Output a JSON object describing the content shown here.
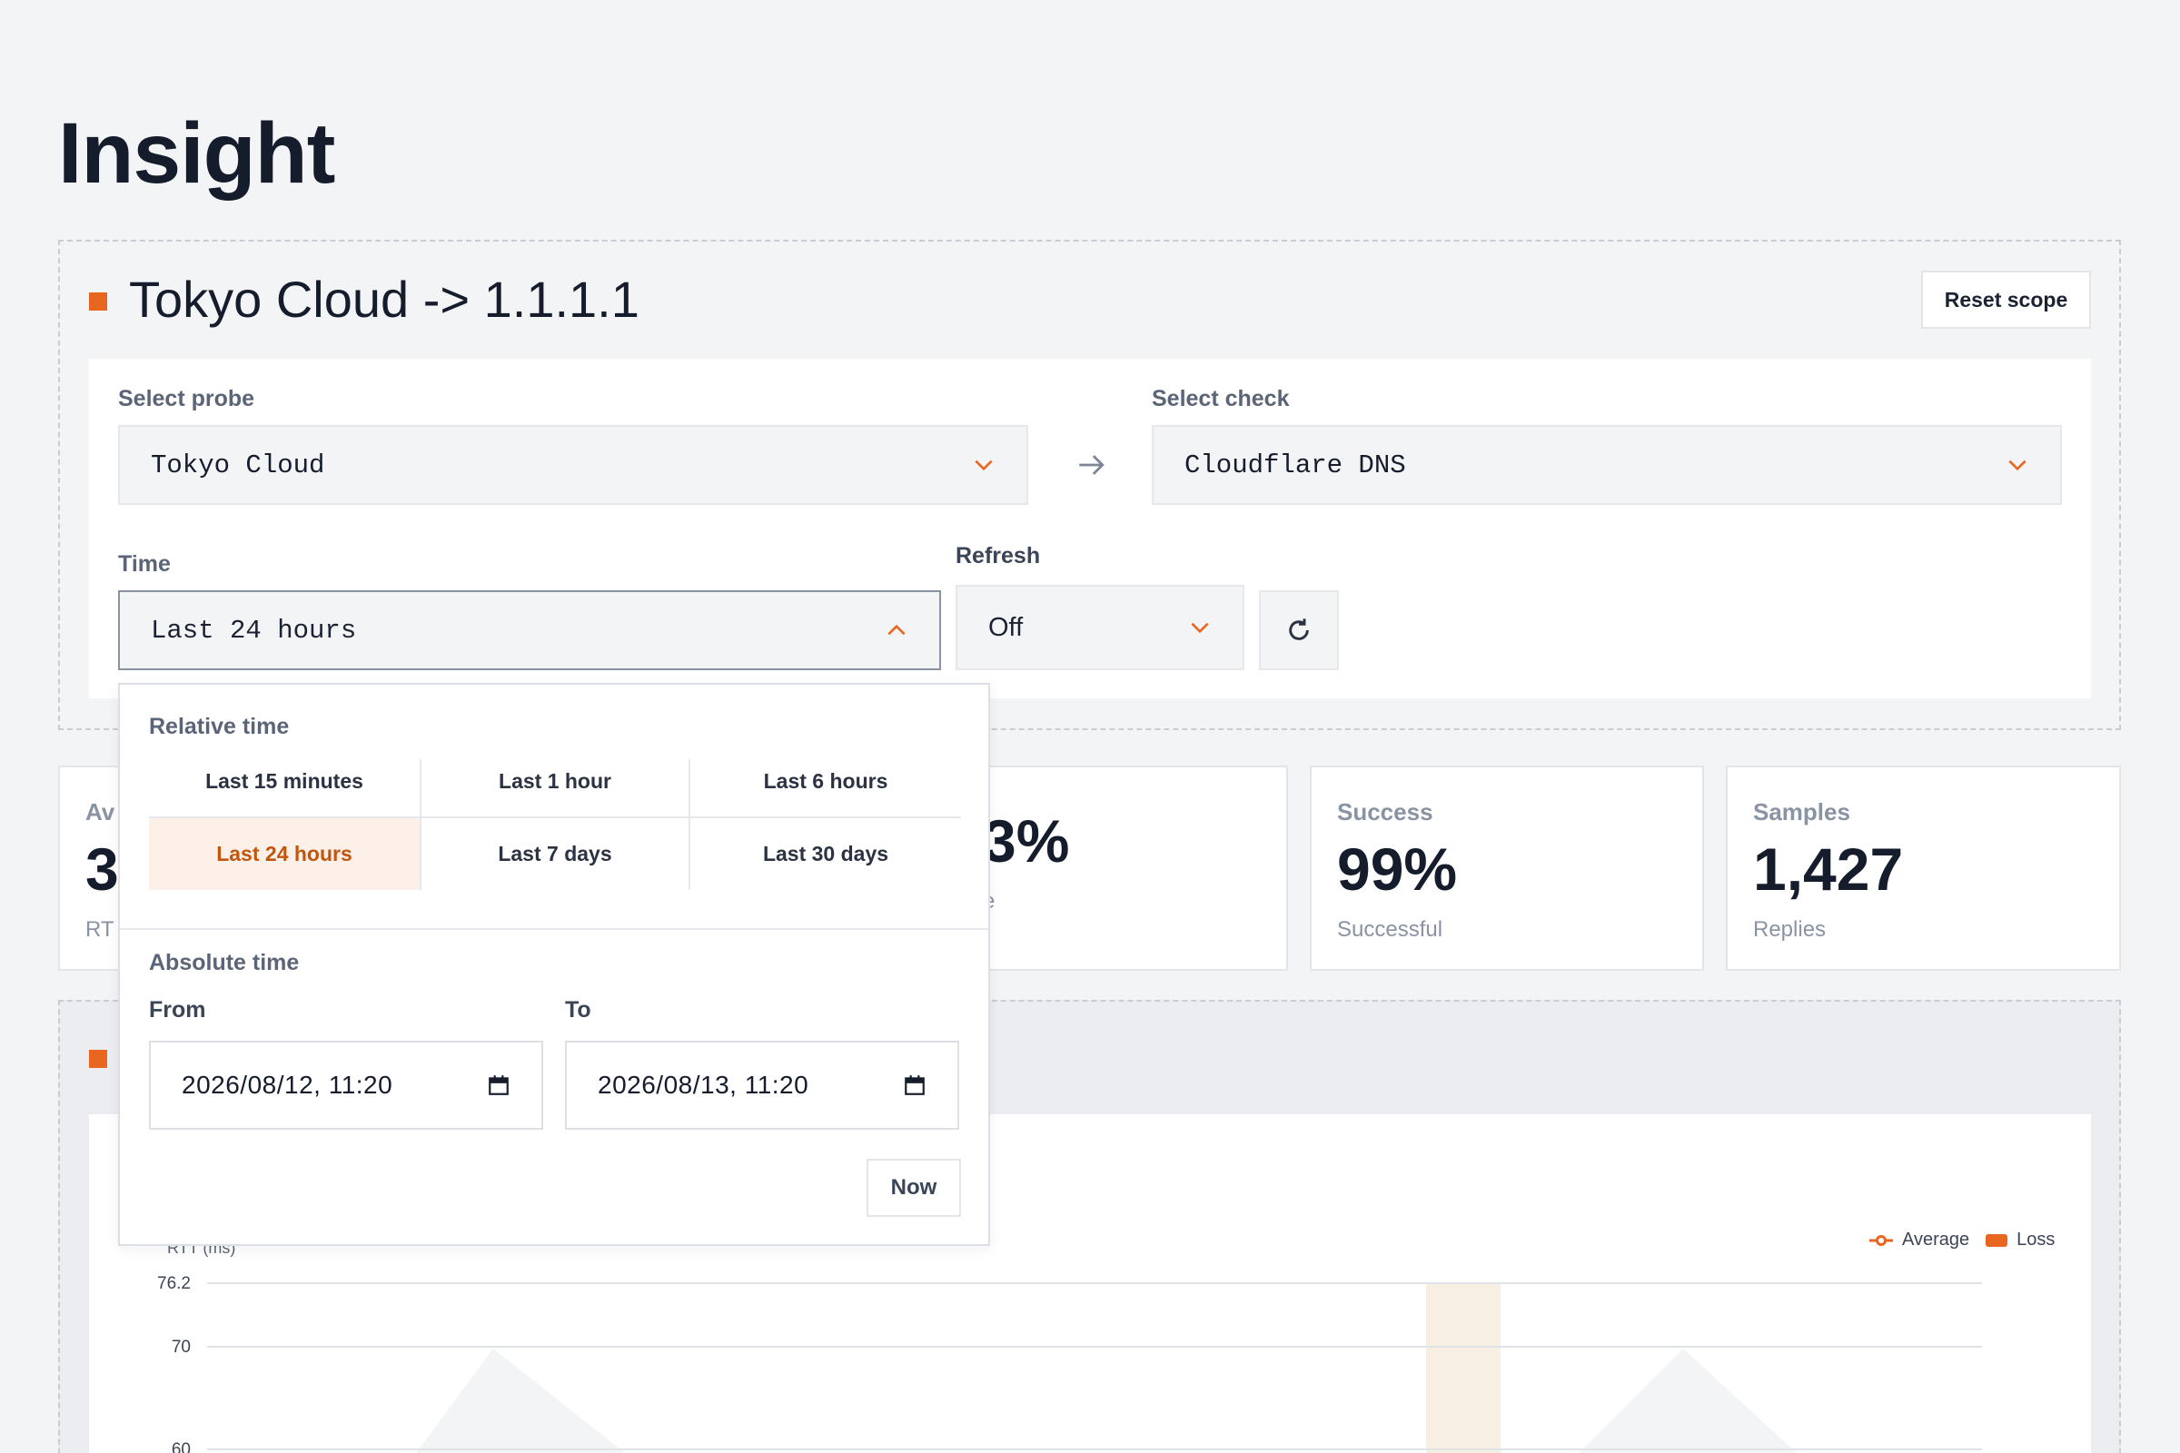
{
  "page": {
    "title": "Insight"
  },
  "scope": {
    "title": "Tokyo Cloud -> 1.1.1.1",
    "reset_label": "Reset scope",
    "probe": {
      "label": "Select probe",
      "value": "Tokyo Cloud"
    },
    "check": {
      "label": "Select check",
      "value": "Cloudflare DNS"
    },
    "time": {
      "label": "Time",
      "value": "Last 24 hours"
    },
    "refresh": {
      "label": "Refresh",
      "value": "Off"
    }
  },
  "stats": [
    {
      "label": "Av",
      "value": "3",
      "sub": "RT"
    },
    {
      "label": "",
      "value": "3%",
      "sub": "e"
    },
    {
      "label": "Success",
      "value": "99%",
      "sub": "Successful"
    },
    {
      "label": "Samples",
      "value": "1,427",
      "sub": "Replies"
    }
  ],
  "time_dropdown": {
    "relative_label": "Relative time",
    "presets": [
      {
        "label": "Last 15 minutes"
      },
      {
        "label": "Last 1 hour"
      },
      {
        "label": "Last 6 hours"
      },
      {
        "label": "Last 24 hours",
        "active": true
      },
      {
        "label": "Last 7 days"
      },
      {
        "label": "Last 30 days"
      }
    ],
    "absolute_label": "Absolute time",
    "from": {
      "label": "From",
      "value": "2026/08/12, 11:20"
    },
    "to": {
      "label": "To",
      "value": "2026/08/13, 11:20"
    },
    "now_label": "Now"
  },
  "chart_data": {
    "type": "line",
    "ylabel": "RTT (ms)",
    "y_ticks": [
      76.2,
      70,
      60
    ],
    "legend": [
      {
        "name": "Average",
        "color": "#e8661f"
      },
      {
        "name": "Loss",
        "color": "#e8661f"
      }
    ],
    "colors": {
      "accent": "#e8661f",
      "loss_band": "#f7efe2"
    }
  }
}
